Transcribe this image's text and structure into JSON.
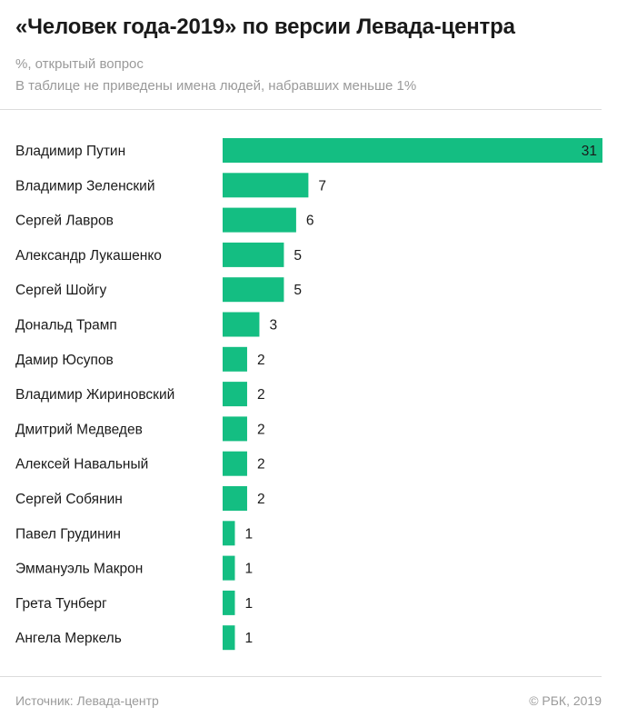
{
  "header": {
    "title": "«Человек года-2019» по версии Левада-центра",
    "subtitle_1": "%, открытый вопрос",
    "subtitle_2": "В таблице не приведены имена людей, набравших меньше 1%"
  },
  "footer": {
    "source": "Источник: Левада-центр",
    "copyright": "© РБК, 2019"
  },
  "colors": {
    "bar": "#14be82",
    "text": "#1a1a1a",
    "muted": "#9a9a9a"
  },
  "chart_data": {
    "type": "bar",
    "orientation": "horizontal",
    "categories": [
      "Владимир Путин",
      "Владимир Зеленский",
      "Сергей Лавров",
      "Александр Лукашенко",
      "Сергей Шойгу",
      "Дональд Трамп",
      "Дамир Юсупов",
      "Владимир Жириновский",
      "Дмитрий Медведев",
      "Алексей Навальный",
      "Сергей Собянин",
      "Павел Грудинин",
      "Эммануэль Макрон",
      "Грета Тунберг",
      "Ангела Меркель"
    ],
    "values": [
      31,
      7,
      6,
      5,
      5,
      3,
      2,
      2,
      2,
      2,
      2,
      1,
      1,
      1,
      1
    ],
    "value_labels": [
      "31",
      "7",
      "6",
      "5",
      "5",
      "3",
      "2",
      "2",
      "2",
      "2",
      "2",
      "1",
      "1",
      "1",
      "1"
    ],
    "xlim": [
      0,
      31
    ],
    "grid": false,
    "legend": "none"
  }
}
